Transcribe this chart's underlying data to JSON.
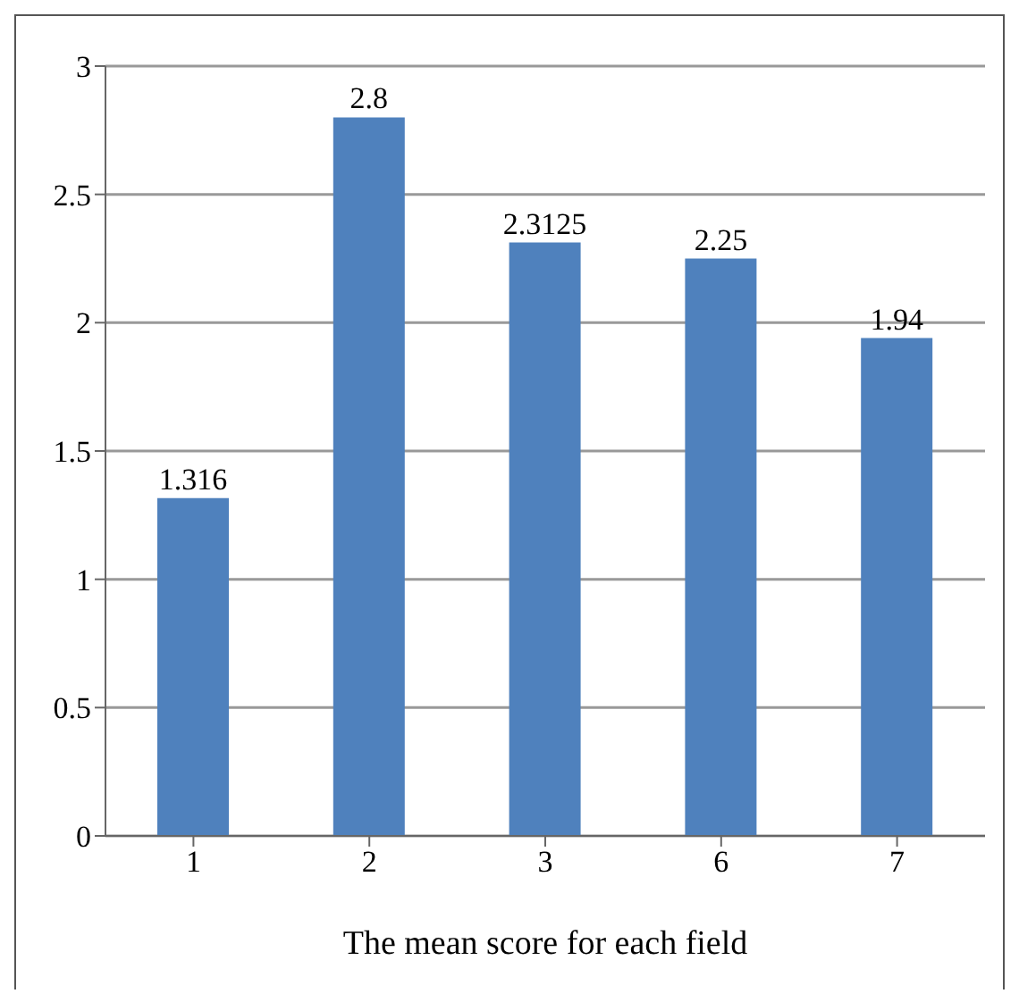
{
  "chart_data": {
    "type": "bar",
    "xlabel": "The mean score for each field",
    "categories": [
      "1",
      "2",
      "3",
      "6",
      "7"
    ],
    "values": [
      1.316,
      2.8,
      2.3125,
      2.25,
      1.94
    ],
    "color": "#4f81bd",
    "ylim": [
      0,
      3
    ],
    "yticks": [
      0,
      0.5,
      1,
      1.5,
      2,
      2.5,
      3
    ],
    "grid": "y",
    "data_labels": true
  }
}
